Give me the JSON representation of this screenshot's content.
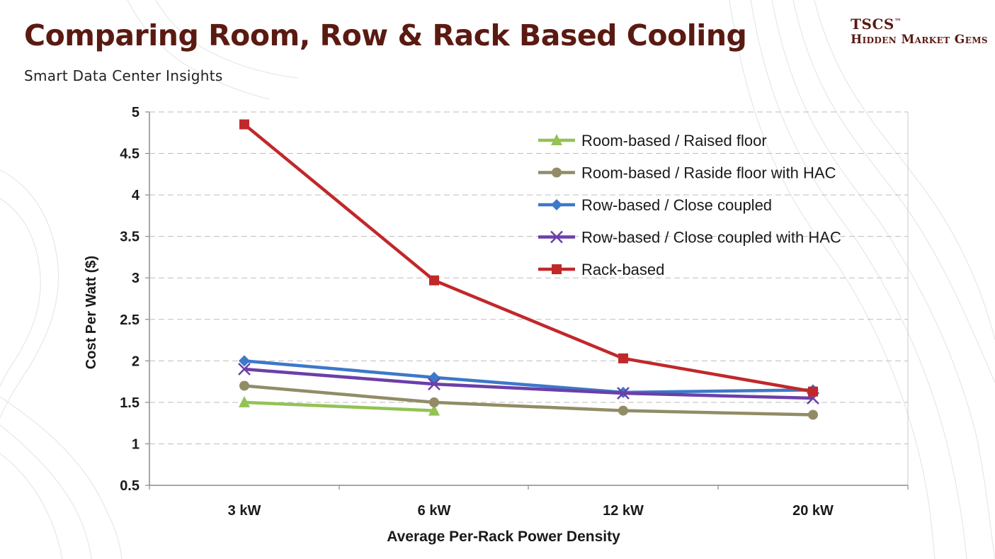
{
  "header": {
    "title": "Comparing Room, Row & Rack Based Cooling",
    "subtitle": "Smart Data Center Insights",
    "brand_line1": "TSCS",
    "brand_tm": "™",
    "brand_line2": "Hidden Market Gems"
  },
  "chart_data": {
    "type": "line",
    "title": "",
    "xlabel": "Average Per-Rack Power Density",
    "ylabel": "Cost Per Watt ($)",
    "categories": [
      "3 kW",
      "6 kW",
      "12 kW",
      "20 kW"
    ],
    "ylim": [
      0.5,
      5
    ],
    "yticks": [
      "0.5",
      "1",
      "1.5",
      "2",
      "2.5",
      "3",
      "3.5",
      "4",
      "4.5",
      "5"
    ],
    "grid": true,
    "legend_position": "top-right",
    "series": [
      {
        "name": "Room-based  / Raised  floor",
        "color": "#92c353",
        "marker": "triangle",
        "values": [
          1.5,
          1.4,
          null,
          null
        ]
      },
      {
        "name": "Room-based  / Raside  floor  with  HAC",
        "color": "#928c66",
        "marker": "circle",
        "values": [
          1.7,
          1.5,
          1.4,
          1.35
        ]
      },
      {
        "name": "Row-based  / Close  coupled",
        "color": "#3d78c9",
        "marker": "diamond",
        "values": [
          2.0,
          1.8,
          1.62,
          1.65
        ]
      },
      {
        "name": "Row-based  / Close  coupled  with  HAC",
        "color": "#6b3fa8",
        "marker": "x",
        "values": [
          1.9,
          1.72,
          1.61,
          1.55
        ]
      },
      {
        "name": "Rack-based",
        "color": "#c1282a",
        "marker": "square",
        "values": [
          4.85,
          2.97,
          2.03,
          1.63
        ]
      }
    ]
  }
}
